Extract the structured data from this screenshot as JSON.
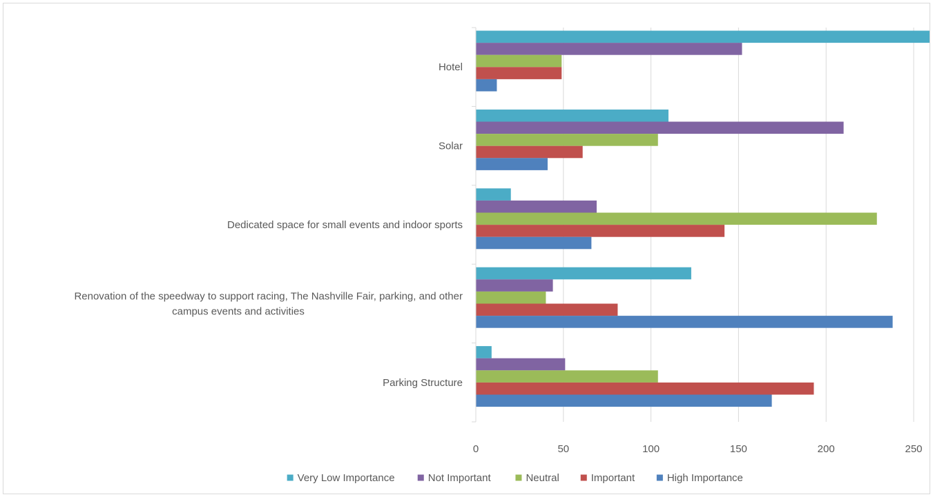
{
  "chart_data": {
    "type": "bar",
    "orientation": "horizontal",
    "title": "",
    "xlabel": "",
    "ylabel": "",
    "xlim": [
      0,
      250
    ],
    "x_ticks": [
      "0",
      "50",
      "100",
      "150",
      "200",
      "250"
    ],
    "grid": "vertical",
    "legend_position": "bottom",
    "categories": [
      {
        "lines": [
          "Hotel"
        ]
      },
      {
        "lines": [
          "Solar"
        ]
      },
      {
        "lines": [
          "Dedicated space for small events and indoor sports"
        ]
      },
      {
        "lines": [
          "Renovation of the speedway to support racing, The Nashville Fair, parking, and other",
          "campus events and activities"
        ]
      },
      {
        "lines": [
          "Parking Structure"
        ]
      }
    ],
    "series": [
      {
        "name": "Very Low Importance",
        "color": "#4bacc6",
        "values": [
          262,
          110,
          20,
          123,
          9
        ]
      },
      {
        "name": "Not Important",
        "color": "#8064a2",
        "values": [
          152,
          210,
          69,
          44,
          51
        ]
      },
      {
        "name": "Neutral",
        "color": "#9bbb59",
        "values": [
          49,
          104,
          229,
          40,
          104
        ]
      },
      {
        "name": "Important",
        "color": "#c0504d",
        "values": [
          49,
          61,
          142,
          81,
          193
        ]
      },
      {
        "name": "High Importance",
        "color": "#4f81bd",
        "values": [
          12,
          41,
          66,
          238,
          169
        ]
      }
    ]
  }
}
